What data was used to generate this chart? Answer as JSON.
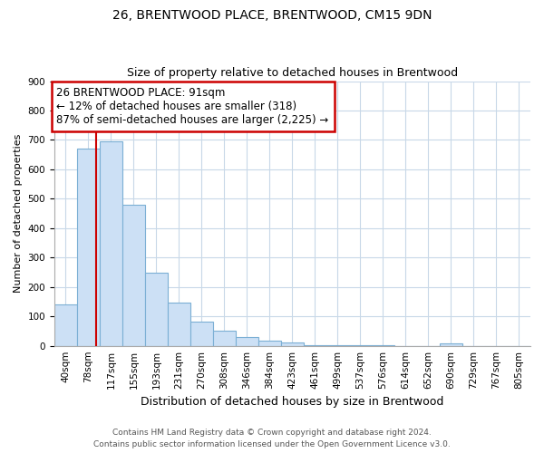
{
  "title": "26, BRENTWOOD PLACE, BRENTWOOD, CM15 9DN",
  "subtitle": "Size of property relative to detached houses in Brentwood",
  "xlabel": "Distribution of detached houses by size in Brentwood",
  "ylabel": "Number of detached properties",
  "bar_labels": [
    "40sqm",
    "78sqm",
    "117sqm",
    "155sqm",
    "193sqm",
    "231sqm",
    "270sqm",
    "308sqm",
    "346sqm",
    "384sqm",
    "423sqm",
    "461sqm",
    "499sqm",
    "537sqm",
    "576sqm",
    "614sqm",
    "652sqm",
    "690sqm",
    "729sqm",
    "767sqm",
    "805sqm"
  ],
  "bar_values": [
    140,
    670,
    695,
    480,
    248,
    148,
    83,
    50,
    30,
    18,
    10,
    3,
    1,
    1,
    1,
    0,
    0,
    8,
    0,
    0,
    0
  ],
  "bar_fill_color": "#cce0f5",
  "bar_edge_color": "#7bafd4",
  "ylim": [
    0,
    900
  ],
  "yticks": [
    0,
    100,
    200,
    300,
    400,
    500,
    600,
    700,
    800,
    900
  ],
  "annotation_title": "26 BRENTWOOD PLACE: 91sqm",
  "annotation_line1": "← 12% of detached houses are smaller (318)",
  "annotation_line2": "87% of semi-detached houses are larger (2,225) →",
  "annotation_box_color": "#ffffff",
  "annotation_box_edge": "#cc0000",
  "red_line_color": "#cc0000",
  "footer_line1": "Contains HM Land Registry data © Crown copyright and database right 2024.",
  "footer_line2": "Contains public sector information licensed under the Open Government Licence v3.0.",
  "grid_color": "#c8d8e8",
  "background_color": "#ffffff",
  "title_fontsize": 10,
  "subtitle_fontsize": 9,
  "ylabel_fontsize": 8,
  "xlabel_fontsize": 9,
  "tick_fontsize": 7.5,
  "footer_fontsize": 6.5
}
